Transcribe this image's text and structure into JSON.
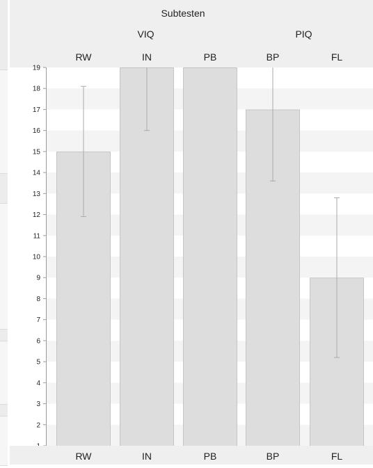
{
  "chart_data": {
    "type": "bar",
    "title": "Subtesten",
    "groups": [
      {
        "label": "VIQ",
        "categories": [
          "RW",
          "IN",
          "PB"
        ]
      },
      {
        "label": "PIQ",
        "categories": [
          "BP",
          "FL"
        ]
      }
    ],
    "categories": [
      "RW",
      "IN",
      "PB",
      "BP",
      "FL"
    ],
    "values": [
      15,
      19,
      19,
      17,
      9
    ],
    "error_low": [
      11.9,
      16,
      null,
      13.6,
      5.2
    ],
    "error_high": [
      18.1,
      19,
      null,
      19,
      12.8
    ],
    "ylim": [
      1,
      19
    ],
    "yticks": [
      1,
      2,
      3,
      4,
      5,
      6,
      7,
      8,
      9,
      10,
      11,
      12,
      13,
      14,
      15,
      16,
      17,
      18,
      19
    ],
    "grid": "alternating bands",
    "colors": {
      "bar_fill": "#dddddd",
      "bar_stroke": "#c4c4c4",
      "band": "#f4f4f4",
      "header_bg": "#efefef",
      "error_bar": "#aaaaaa"
    }
  }
}
